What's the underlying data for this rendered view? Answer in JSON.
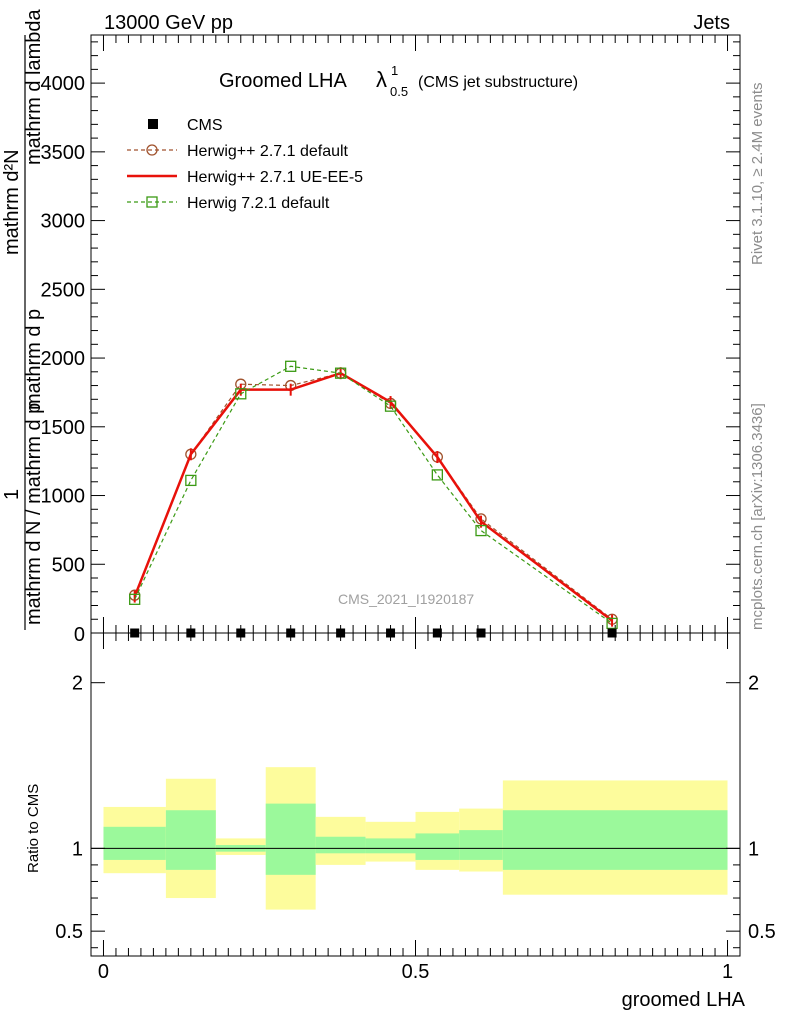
{
  "header": {
    "left": "13000 GeV pp",
    "right": "Jets"
  },
  "side": {
    "rivet": "Rivet 3.1.10, ≥ 2.4M events",
    "mcplots": "mcplots.cern.ch [arXiv:1306.3436]"
  },
  "chart_data": {
    "type": "line",
    "title_main": "Groomed LHA",
    "title_lambda": "λ",
    "title_sup": "1",
    "title_sub": "0.5",
    "title_suffix": "(CMS jet substructure)",
    "watermark": "CMS_2021_I1920187",
    "ylabel_lines": [
      "1",
      "mathrm d N / mathrm d p",
      "mathrm d N",
      "mathrm d p",
      "mathrm d lambda"
    ],
    "ylabel_tail": [
      " mathrm d p",
      " mathrm d lambda"
    ],
    "ylabel": "mathrm d N / mathrm d p",
    "ylabel_num": "mathrm d²N",
    "ylabel_den": "mathrm d N / mathrm d p_⊥ mathrm d lambda",
    "xlabel": "groomed LHA",
    "ratio_ylabel": "Ratio to CMS",
    "xlim": [
      -0.02,
      1.02
    ],
    "ylim": [
      0,
      4350
    ],
    "x_ticks": [
      "0",
      "0.5",
      "1"
    ],
    "y_ticks": [
      "500",
      "1000",
      "1500",
      "2000",
      "2500",
      "3000",
      "3500",
      "4000"
    ],
    "y_tick_zero": "0",
    "ratio_ylim": [
      0.35,
      2.3
    ],
    "ratio_ticks": [
      "0.5",
      "1",
      "2"
    ],
    "legend": [
      "CMS",
      "Herwig++ 2.7.1 default",
      "Herwig++ 2.7.1 UE-EE-5",
      "Herwig 7.2.1 default"
    ],
    "data": {
      "x": [
        0.05,
        0.14,
        0.22,
        0.3,
        0.38,
        0.46,
        0.535,
        0.605,
        0.815
      ],
      "y": [
        0,
        0,
        0,
        0,
        0,
        0,
        0,
        0,
        0
      ]
    },
    "series": [
      {
        "name": "Herwig++ 2.7.1 default",
        "color": "#a0522d",
        "x": [
          0.05,
          0.14,
          0.22,
          0.3,
          0.38,
          0.46,
          0.535,
          0.605,
          0.815
        ],
        "y": [
          275,
          1300,
          1810,
          1800,
          1890,
          1670,
          1280,
          830,
          100
        ]
      },
      {
        "name": "Herwig++ 2.7.1 UE-EE-5",
        "color": "#e8110a",
        "x": [
          0.05,
          0.14,
          0.22,
          0.3,
          0.38,
          0.46,
          0.535,
          0.605,
          0.815
        ],
        "y": [
          265,
          1300,
          1770,
          1770,
          1890,
          1680,
          1280,
          810,
          90
        ]
      },
      {
        "name": "Herwig 7.2.1 default",
        "color": "#3b9a14",
        "x": [
          0.05,
          0.14,
          0.22,
          0.3,
          0.38,
          0.46,
          0.535,
          0.605,
          0.815
        ],
        "y": [
          245,
          1110,
          1740,
          1940,
          1890,
          1650,
          1150,
          745,
          70
        ]
      }
    ],
    "ratio_bands": [
      {
        "x0": 0.0,
        "x1": 0.1,
        "in": [
          0.93,
          1.13
        ],
        "out": [
          0.85,
          1.25
        ]
      },
      {
        "x0": 0.1,
        "x1": 0.18,
        "in": [
          0.87,
          1.23
        ],
        "out": [
          0.7,
          1.42
        ]
      },
      {
        "x0": 0.18,
        "x1": 0.26,
        "in": [
          0.98,
          1.02
        ],
        "out": [
          0.96,
          1.06
        ]
      },
      {
        "x0": 0.26,
        "x1": 0.34,
        "in": [
          0.84,
          1.27
        ],
        "out": [
          0.63,
          1.49
        ]
      },
      {
        "x0": 0.34,
        "x1": 0.42,
        "in": [
          0.97,
          1.07
        ],
        "out": [
          0.9,
          1.19
        ]
      },
      {
        "x0": 0.42,
        "x1": 0.5,
        "in": [
          0.97,
          1.06
        ],
        "out": [
          0.92,
          1.16
        ]
      },
      {
        "x0": 0.5,
        "x1": 0.57,
        "in": [
          0.93,
          1.09
        ],
        "out": [
          0.87,
          1.22
        ]
      },
      {
        "x0": 0.57,
        "x1": 0.64,
        "in": [
          0.93,
          1.11
        ],
        "out": [
          0.86,
          1.24
        ]
      },
      {
        "x0": 0.64,
        "x1": 1.0,
        "in": [
          0.87,
          1.23
        ],
        "out": [
          0.72,
          1.41
        ]
      }
    ],
    "colors": {
      "band_inner": "#9bf99b",
      "band_outer": "#fdfc9c"
    }
  }
}
